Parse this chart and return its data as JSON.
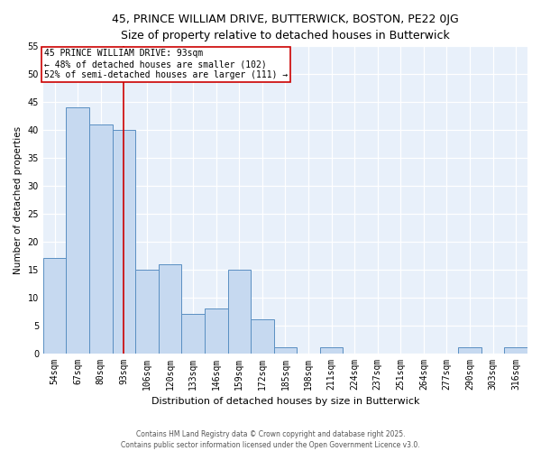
{
  "title1": "45, PRINCE WILLIAM DRIVE, BUTTERWICK, BOSTON, PE22 0JG",
  "title2": "Size of property relative to detached houses in Butterwick",
  "xlabel": "Distribution of detached houses by size in Butterwick",
  "ylabel": "Number of detached properties",
  "bar_labels": [
    "54sqm",
    "67sqm",
    "80sqm",
    "93sqm",
    "106sqm",
    "120sqm",
    "133sqm",
    "146sqm",
    "159sqm",
    "172sqm",
    "185sqm",
    "198sqm",
    "211sqm",
    "224sqm",
    "237sqm",
    "251sqm",
    "264sqm",
    "277sqm",
    "290sqm",
    "303sqm",
    "316sqm"
  ],
  "bar_values": [
    17,
    44,
    41,
    40,
    15,
    16,
    7,
    8,
    15,
    6,
    1,
    0,
    1,
    0,
    0,
    0,
    0,
    0,
    1,
    0,
    1
  ],
  "bar_color": "#c6d9f0",
  "bar_edge_color": "#5a8fc2",
  "vline_x_idx": 3,
  "vline_color": "#cc0000",
  "annotation_text": "45 PRINCE WILLIAM DRIVE: 93sqm\n← 48% of detached houses are smaller (102)\n52% of semi-detached houses are larger (111) →",
  "annotation_box_color": "#ffffff",
  "annotation_box_edge": "#cc0000",
  "ylim": [
    0,
    55
  ],
  "yticks": [
    0,
    5,
    10,
    15,
    20,
    25,
    30,
    35,
    40,
    45,
    50,
    55
  ],
  "footer1": "Contains HM Land Registry data © Crown copyright and database right 2025.",
  "footer2": "Contains public sector information licensed under the Open Government Licence v3.0.",
  "bg_color": "#e8f0fa",
  "fig_bg": "#ffffff",
  "grid_color": "#ffffff",
  "title1_fontsize": 9.0,
  "title2_fontsize": 8.5,
  "ylabel_fontsize": 7.5,
  "xlabel_fontsize": 8.0,
  "tick_fontsize": 7.0,
  "ann_fontsize": 7.0,
  "footer_fontsize": 5.5
}
